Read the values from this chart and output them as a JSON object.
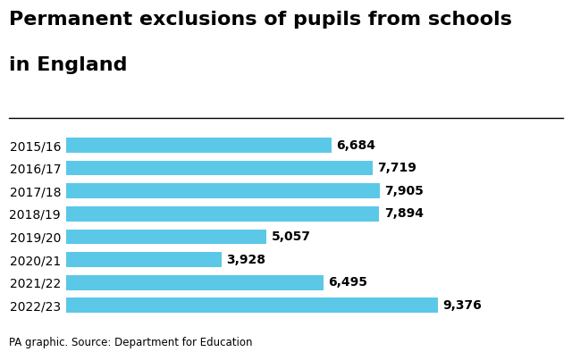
{
  "title_line1": "Permanent exclusions of pupils from schools",
  "title_line2": "in England",
  "categories": [
    "2015/16",
    "2016/17",
    "2017/18",
    "2018/19",
    "2019/20",
    "2020/21",
    "2021/22",
    "2022/23"
  ],
  "values": [
    6684,
    7719,
    7905,
    7894,
    5057,
    3928,
    6495,
    9376
  ],
  "labels": [
    "6,684",
    "7,719",
    "7,905",
    "7,894",
    "5,057",
    "3,928",
    "6,495",
    "9,376"
  ],
  "bar_color": "#5BC8E8",
  "title_fontsize": 16,
  "label_fontsize": 10,
  "ytick_fontsize": 10,
  "footer": "PA graphic. Source: Department for Education",
  "footer_fontsize": 8.5,
  "xlim": [
    0,
    10800
  ],
  "background_color": "#ffffff"
}
